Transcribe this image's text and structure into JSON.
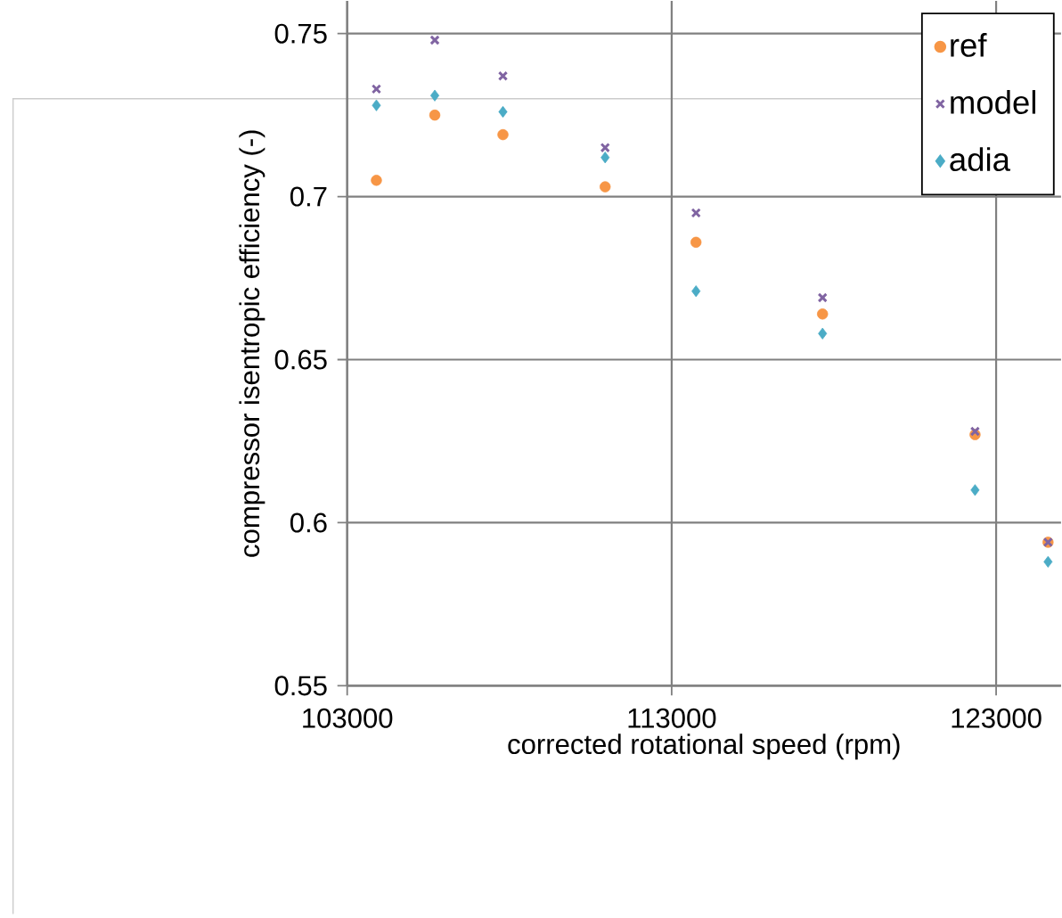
{
  "chart_data": {
    "type": "scatter",
    "xlabel": "corrected rotational speed (rpm)",
    "ylabel": "compressor isentropic  efficiency (-)",
    "x": [
      103900,
      105700,
      107800,
      110950,
      113750,
      117650,
      122350,
      124600
    ],
    "series": [
      {
        "name": "ref",
        "color": "#f79646",
        "marker": "circle",
        "values": [
          0.705,
          0.725,
          0.719,
          0.703,
          0.686,
          0.664,
          0.627,
          0.594
        ]
      },
      {
        "name": "model",
        "color": "#8064a2",
        "marker": "cross",
        "values": [
          0.733,
          0.748,
          0.737,
          0.715,
          0.695,
          0.669,
          0.628,
          0.594
        ]
      },
      {
        "name": "adia",
        "color": "#4bacc6",
        "marker": "diamond",
        "values": [
          0.728,
          0.731,
          0.726,
          0.712,
          0.671,
          0.658,
          0.61,
          0.588
        ]
      }
    ],
    "xlim": [
      103000,
      125000
    ],
    "ylim": [
      0.55,
      0.76
    ],
    "xticks": [
      103000,
      113000,
      123000
    ],
    "yticks": [
      0.55,
      0.6,
      0.65,
      0.7,
      0.75
    ],
    "grid": true,
    "legend": "top right"
  }
}
